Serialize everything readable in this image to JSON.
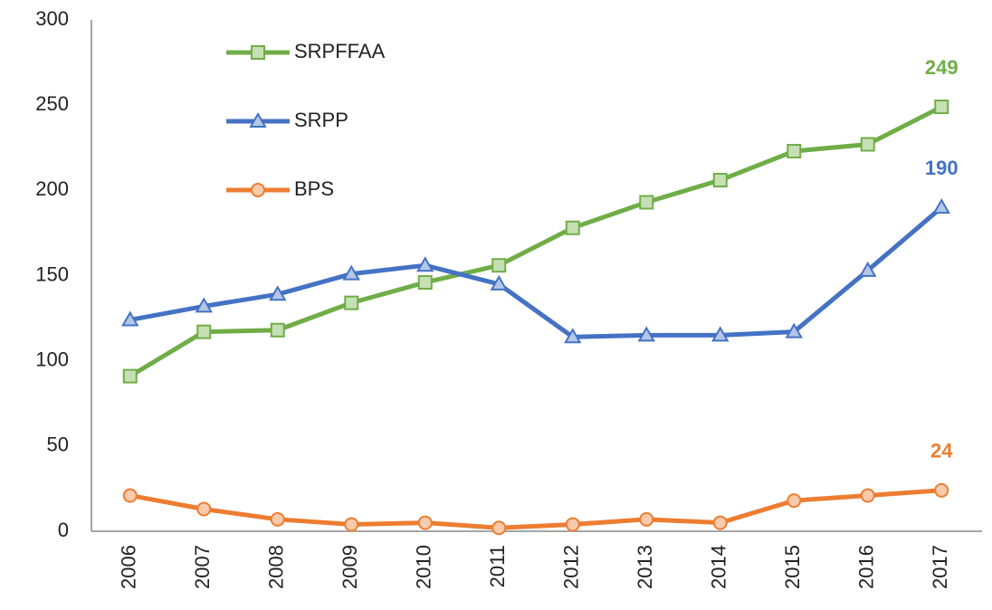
{
  "chart_data": {
    "type": "line",
    "categories": [
      "2006",
      "2007",
      "2008",
      "2009",
      "2010",
      "2011",
      "2012",
      "2013",
      "2014",
      "2015",
      "2016",
      "2017"
    ],
    "series": [
      {
        "name": "SRPFFAA",
        "color": "#70ad47",
        "marker": "square",
        "marker_fill": "#c5e0b4",
        "values": [
          91,
          117,
          118,
          134,
          146,
          156,
          178,
          193,
          206,
          223,
          227,
          249
        ],
        "value_labels": [
          null,
          null,
          null,
          null,
          null,
          null,
          null,
          null,
          null,
          null,
          null,
          "249"
        ]
      },
      {
        "name": "SRPP",
        "color": "#4472c4",
        "marker": "triangle",
        "marker_fill": "#b4c7e7",
        "values": [
          124,
          132,
          139,
          151,
          156,
          145,
          114,
          115,
          115,
          117,
          153,
          190
        ],
        "value_labels": [
          null,
          null,
          null,
          null,
          null,
          null,
          null,
          null,
          null,
          null,
          null,
          "190"
        ]
      },
      {
        "name": "BPS",
        "color": "#ed7d31",
        "marker": "circle",
        "marker_fill": "#f8cbad",
        "values": [
          21,
          13,
          7,
          4,
          5,
          2,
          4,
          7,
          5,
          18,
          21,
          24
        ],
        "value_labels": [
          null,
          null,
          null,
          null,
          null,
          null,
          null,
          null,
          null,
          null,
          null,
          "24"
        ]
      }
    ],
    "ylim": [
      0,
      300
    ],
    "yticks": [
      0,
      50,
      100,
      150,
      200,
      250,
      300
    ],
    "grid": false,
    "legend": "upper-left"
  }
}
